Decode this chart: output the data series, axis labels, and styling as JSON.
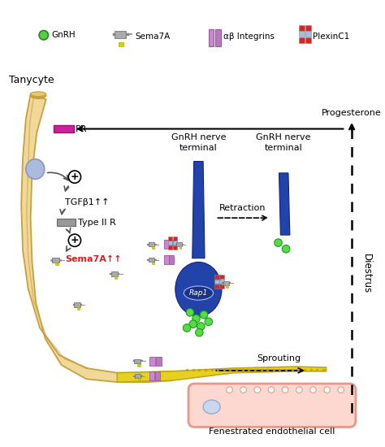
{
  "bg_color": "#ffffff",
  "tanycyte_color": "#f0d898",
  "tanycyte_outline": "#c8a040",
  "neuron_color": "#2244aa",
  "neuron_dark": "#112288",
  "endothelial_color": "#fcd8d0",
  "endothelial_outline": "#e89888",
  "yellow_process_color": "#e8d020",
  "labels": {
    "tanycyte": "Tanycyte",
    "pr": "PR",
    "tgfb1": "TGFβ1↑↑",
    "type2r": "Type II R",
    "sema7a_label": "Sema7A↑↑",
    "gnrh_terminal1": "GnRH nerve\nterminal",
    "gnrh_terminal2": "GnRH nerve\nterminal",
    "progesterone": "Progesterone",
    "diestrus": "Diestrus",
    "retraction": "Retraction",
    "sprouting": "Sprouting",
    "rap1": "Rap1",
    "endothelial": "Fenestrated endothelial cell"
  }
}
